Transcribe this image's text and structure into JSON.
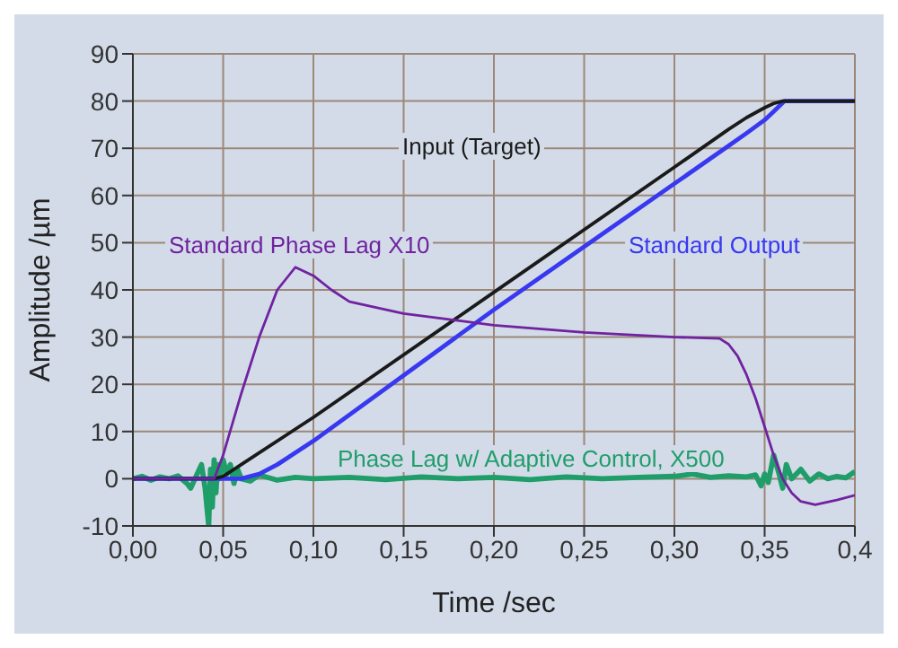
{
  "chart_data": {
    "type": "line",
    "xlabel": "Time /sec",
    "ylabel": "Amplitude /µm",
    "xlim": [
      0,
      0.4
    ],
    "ylim": [
      -10,
      90
    ],
    "xticks": [
      {
        "value": 0,
        "label": "0,00"
      },
      {
        "value": 0.05,
        "label": "0,05"
      },
      {
        "value": 0.1,
        "label": "0,10"
      },
      {
        "value": 0.15,
        "label": "0,15"
      },
      {
        "value": 0.2,
        "label": "0,20"
      },
      {
        "value": 0.25,
        "label": "0,25"
      },
      {
        "value": 0.3,
        "label": "0,30"
      },
      {
        "value": 0.35,
        "label": "0,35"
      },
      {
        "value": 0.4,
        "label": "0,4"
      }
    ],
    "yticks": [
      -10,
      0,
      10,
      20,
      30,
      40,
      50,
      60,
      70,
      80,
      90
    ],
    "grid": true,
    "marker": "none",
    "line_style": "solid",
    "series": [
      {
        "name": "Phase Lag w/ Adaptive Control, X500",
        "color": "#1f9e6a",
        "x": [
          0,
          0.005,
          0.01,
          0.015,
          0.02,
          0.025,
          0.03,
          0.032,
          0.035,
          0.038,
          0.04,
          0.042,
          0.043,
          0.044,
          0.045,
          0.046,
          0.047,
          0.048,
          0.05,
          0.052,
          0.054,
          0.056,
          0.058,
          0.06,
          0.065,
          0.07,
          0.08,
          0.09,
          0.1,
          0.12,
          0.14,
          0.16,
          0.18,
          0.2,
          0.22,
          0.24,
          0.26,
          0.28,
          0.3,
          0.31,
          0.32,
          0.33,
          0.34,
          0.345,
          0.348,
          0.35,
          0.352,
          0.355,
          0.358,
          0.36,
          0.362,
          0.365,
          0.37,
          0.375,
          0.38,
          0.385,
          0.39,
          0.395,
          0.4
        ],
        "values": [
          0,
          0.5,
          -0.3,
          0.4,
          0,
          0.6,
          -1,
          -2,
          0.5,
          3,
          -2,
          -10,
          2,
          -6,
          4,
          -3,
          3,
          0,
          4,
          1,
          3,
          -1,
          2,
          0,
          -0.5,
          0.8,
          -0.3,
          0.3,
          0,
          0.3,
          -0.2,
          0.4,
          0,
          0.3,
          -0.2,
          0.4,
          0,
          0.3,
          0.5,
          1,
          0.3,
          0.6,
          0.4,
          0.8,
          -1.5,
          1,
          -0.8,
          5,
          1,
          -2,
          3,
          0,
          2,
          -0.5,
          1,
          0,
          0.5,
          0.2,
          1.5
        ]
      },
      {
        "name": "Standard Output",
        "color": "#3838f0",
        "x": [
          0,
          0.06,
          0.07,
          0.08,
          0.1,
          0.2,
          0.3,
          0.33,
          0.34,
          0.35,
          0.355,
          0.361,
          0.37,
          0.4
        ],
        "values": [
          0,
          0,
          1,
          3,
          8,
          35.8,
          62.5,
          70.5,
          73.2,
          76,
          77.8,
          80,
          80,
          80
        ]
      },
      {
        "name": "Input (Target)",
        "color": "#1a1a1a",
        "x": [
          0,
          0.045,
          0.05,
          0.06,
          0.1,
          0.2,
          0.3,
          0.33,
          0.34,
          0.35,
          0.355,
          0.36,
          0.37,
          0.4
        ],
        "values": [
          0,
          0,
          0.5,
          3,
          13,
          39.5,
          66,
          74,
          76.5,
          78.6,
          79.5,
          80,
          80,
          80
        ]
      },
      {
        "name": "Standard Phase Lag X10",
        "color": "#7022a0",
        "x": [
          0,
          0.045,
          0.05,
          0.06,
          0.07,
          0.08,
          0.09,
          0.1,
          0.11,
          0.12,
          0.15,
          0.18,
          0.2,
          0.25,
          0.3,
          0.325,
          0.33,
          0.335,
          0.34,
          0.345,
          0.35,
          0.355,
          0.36,
          0.365,
          0.37,
          0.378,
          0.39,
          0.4
        ],
        "values": [
          0,
          0,
          5,
          18,
          30,
          40,
          44.8,
          43,
          40,
          37.5,
          35,
          33.5,
          32.5,
          31,
          30,
          29.7,
          28.5,
          26,
          22,
          17,
          11,
          5,
          0,
          -3,
          -4.8,
          -5.5,
          -4.5,
          -3.5
        ]
      }
    ]
  }
}
